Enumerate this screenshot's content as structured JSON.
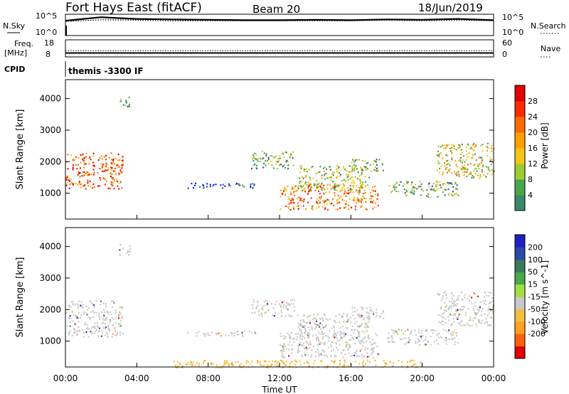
{
  "header": {
    "station": "Fort Hays East (fitACF)",
    "beam": "Beam 20",
    "date": "18/Jun/2019"
  },
  "top_panels": {
    "nsky_label": "N.Sky",
    "nsearch_label": "N.Search",
    "noise_ticks_left": [
      "10^5",
      "10^0"
    ],
    "noise_ticks_right": [
      "10^5",
      "10^0"
    ],
    "freq_label_1": "Freq.",
    "freq_label_2": "[MHz]",
    "freq_ticks_left": [
      "18",
      "8"
    ],
    "nave_label": "Nave",
    "nave_ticks_right": [
      "60",
      "0"
    ],
    "cpid_label": "CPID",
    "cpid_text": "themis -3300 IF"
  },
  "colors": {
    "power_bins": [
      "#0a14ff",
      "#2a3a9a",
      "#2e4fa8",
      "#3a8a6a",
      "#4aa64a",
      "#9acd32",
      "#f5c518",
      "#ffa000",
      "#ff6a00",
      "#ff2a00",
      "#e00000"
    ],
    "velocity_bins": [
      "#2020c0",
      "#2a4aa8",
      "#3a7a5a",
      "#4aa84a",
      "#a0e040",
      "#c8c8c8",
      "#f0c040",
      "#ffa020",
      "#ff6010",
      "#e00000"
    ]
  },
  "chart_data": [
    {
      "type": "line",
      "title": "N.Sky / N.Search",
      "x_range_hours": [
        0,
        24
      ],
      "ylim": [
        1,
        100000
      ],
      "log_scale": true,
      "series": [
        {
          "name": "N.Sky",
          "style": "solid",
          "x": [
            0,
            1,
            2,
            3,
            4,
            6,
            8,
            10,
            12,
            14,
            16,
            18,
            20,
            22,
            24
          ],
          "values": [
            3000,
            8000,
            20000,
            12000,
            8000,
            6000,
            5000,
            4000,
            4000,
            5000,
            4000,
            6000,
            5000,
            8000,
            4000
          ]
        },
        {
          "name": "N.Search",
          "style": "dotted",
          "x": [
            0,
            2,
            4,
            6,
            8,
            10,
            12,
            14,
            16,
            18,
            20,
            22,
            24
          ],
          "values": [
            2000,
            5000,
            4000,
            3000,
            3000,
            3000,
            3000,
            3000,
            3000,
            4000,
            3000,
            4000,
            3000
          ]
        }
      ]
    },
    {
      "type": "line",
      "title": "Freq. / Nave",
      "x_range_hours": [
        0,
        24
      ],
      "ylim_left": [
        8,
        18
      ],
      "ylim_right": [
        0,
        60
      ],
      "series": [
        {
          "name": "Freq.",
          "style": "solid",
          "x": [
            0,
            24
          ],
          "values": [
            10.3,
            10.3
          ]
        },
        {
          "name": "Nave",
          "style": "dotted",
          "x": [
            0,
            24
          ],
          "values": [
            22,
            22
          ]
        }
      ]
    },
    {
      "type": "heatmap",
      "title": "Power",
      "xlabel": "",
      "ylabel": "Slant Range [km]",
      "x_range_hours": [
        0,
        24
      ],
      "ylim": [
        180,
        4600
      ],
      "yticks": [
        1000,
        2000,
        3000,
        4000
      ],
      "colorbar_label": "Power [dB]",
      "colorbar_ticks": [
        4,
        8,
        12,
        16,
        20,
        24,
        28
      ],
      "colorbar_range": [
        0,
        32
      ],
      "echo_regions": [
        {
          "t0": 0.0,
          "t1": 3.2,
          "r0": 1150,
          "r1": 2300,
          "level": 26
        },
        {
          "t0": 3.0,
          "t1": 3.6,
          "r0": 3750,
          "r1": 4100,
          "level": 10
        },
        {
          "t0": 6.8,
          "t1": 10.8,
          "r0": 1180,
          "r1": 1350,
          "level": 6
        },
        {
          "t0": 10.4,
          "t1": 12.8,
          "r0": 1800,
          "r1": 2350,
          "level": 14
        },
        {
          "t0": 12.0,
          "t1": 17.5,
          "r0": 500,
          "r1": 1300,
          "level": 24
        },
        {
          "t0": 13.0,
          "t1": 17.0,
          "r0": 1100,
          "r1": 1900,
          "level": 16
        },
        {
          "t0": 16.0,
          "t1": 17.8,
          "r0": 1700,
          "r1": 2100,
          "level": 14
        },
        {
          "t0": 18.0,
          "t1": 22.0,
          "r0": 900,
          "r1": 1400,
          "level": 14
        },
        {
          "t0": 20.8,
          "t1": 24.0,
          "r0": 1500,
          "r1": 2600,
          "level": 18
        }
      ]
    },
    {
      "type": "heatmap",
      "title": "Velocity",
      "xlabel": "Time UT",
      "ylabel": "Slant Range [km]",
      "x_range_hours": [
        0,
        24
      ],
      "xtick_labels": [
        "00:00",
        "04:00",
        "08:00",
        "12:00",
        "16:00",
        "20:00",
        "00:00"
      ],
      "ylim": [
        180,
        4600
      ],
      "yticks": [
        1000,
        2000,
        3000,
        4000
      ],
      "colorbar_label": "Velocity [m s^-1]",
      "colorbar_ticks": [
        "200",
        "100",
        "50",
        "15",
        "-15",
        "-50",
        "-100",
        "-200"
      ],
      "echo_regions": [
        {
          "t0": 0.0,
          "t1": 3.2,
          "r0": 1150,
          "r1": 2300,
          "velocity": 0
        },
        {
          "t0": 3.0,
          "t1": 3.6,
          "r0": 3750,
          "r1": 4100,
          "velocity": 0
        },
        {
          "t0": 6.8,
          "t1": 10.8,
          "r0": 1180,
          "r1": 1350,
          "velocity": 0
        },
        {
          "t0": 10.4,
          "t1": 12.8,
          "r0": 1800,
          "r1": 2350,
          "velocity": 0
        },
        {
          "t0": 12.0,
          "t1": 17.5,
          "r0": 500,
          "r1": 1300,
          "velocity": 0
        },
        {
          "t0": 13.0,
          "t1": 17.0,
          "r0": 1100,
          "r1": 1900,
          "velocity": 0
        },
        {
          "t0": 16.0,
          "t1": 17.8,
          "r0": 1700,
          "r1": 2100,
          "velocity": 0
        },
        {
          "t0": 18.0,
          "t1": 22.0,
          "r0": 900,
          "r1": 1400,
          "velocity": 0
        },
        {
          "t0": 20.8,
          "t1": 24.0,
          "r0": 1500,
          "r1": 2600,
          "velocity": 0
        },
        {
          "t0": 6.0,
          "t1": 20.0,
          "r0": 180,
          "r1": 420,
          "velocity": -30
        }
      ]
    }
  ]
}
